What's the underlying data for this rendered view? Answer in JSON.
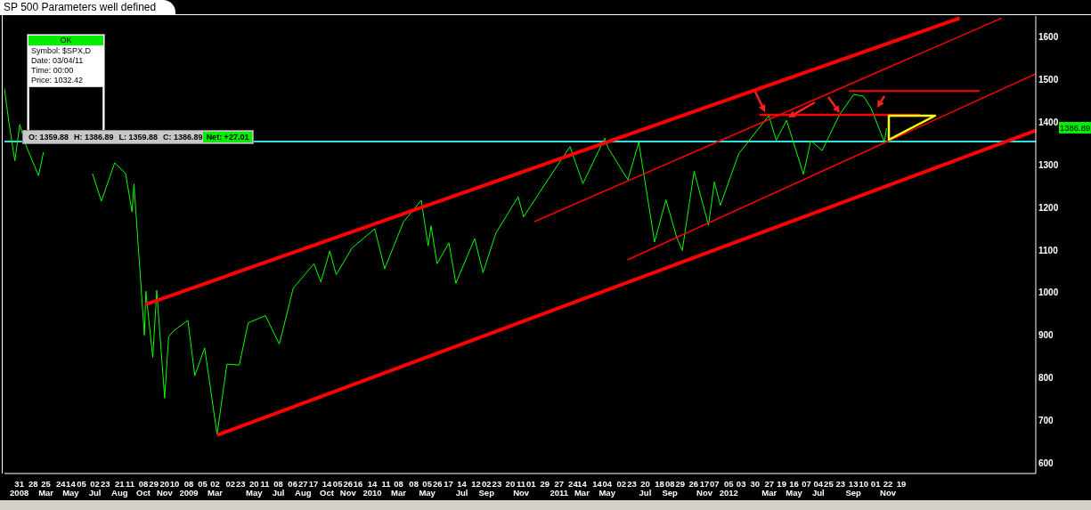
{
  "chart_data": {
    "type": "line",
    "title": "SP 500 Parameters well defined",
    "annotations": [
      "OK",
      "Symbol: $SPX,D",
      "Date: 03/04/11",
      "Time: 00:00",
      "Price: 1032.42",
      "O: 1359.88",
      "H: 1386.89",
      "L: 1359.88",
      "C: 1386.89",
      "Net: +27.01",
      "1386.89"
    ],
    "marker": "none",
    "xlim": [
      "2008-01-01",
      "2013-09-17"
    ],
    "xticks": [
      {
        "value": "2008-01-31",
        "label": "31\n2008"
      },
      {
        "value": "2008-02-28",
        "label": "28"
      },
      {
        "value": "2008-03-25",
        "label": "25\nMar"
      },
      {
        "value": "2008-04-24",
        "label": "24"
      },
      {
        "value": "2008-05-14",
        "label": "14\nMay"
      },
      {
        "value": "2008-06-05",
        "label": "05"
      },
      {
        "value": "2008-07-02",
        "label": "02\nJul"
      },
      {
        "value": "2008-07-23",
        "label": "23"
      },
      {
        "value": "2008-08-21",
        "label": "21\nAug"
      },
      {
        "value": "2008-09-11",
        "label": "11"
      },
      {
        "value": "2008-10-08",
        "label": "08\nOct"
      },
      {
        "value": "2008-10-29",
        "label": "29"
      },
      {
        "value": "2008-11-20",
        "label": "20\nNov"
      },
      {
        "value": "2008-12-10",
        "label": "10"
      },
      {
        "value": "2009-01-08",
        "label": "08\n2009"
      },
      {
        "value": "2009-02-05",
        "label": "05"
      },
      {
        "value": "2009-03-02",
        "label": "02\nMar"
      },
      {
        "value": "2009-04-02",
        "label": "02"
      },
      {
        "value": "2009-04-23",
        "label": "23"
      },
      {
        "value": "2009-05-20",
        "label": "20\nMay"
      },
      {
        "value": "2009-06-11",
        "label": "11"
      },
      {
        "value": "2009-07-08",
        "label": "08\nJul"
      },
      {
        "value": "2009-08-06",
        "label": "06"
      },
      {
        "value": "2009-08-27",
        "label": "27\nAug"
      },
      {
        "value": "2009-09-17",
        "label": "17"
      },
      {
        "value": "2009-10-14",
        "label": "14\nOct"
      },
      {
        "value": "2009-11-05",
        "label": "05"
      },
      {
        "value": "2009-11-26",
        "label": "26\nNov"
      },
      {
        "value": "2009-12-16",
        "label": "16"
      },
      {
        "value": "2010-01-14",
        "label": "14\n2010"
      },
      {
        "value": "2010-02-11",
        "label": "11"
      },
      {
        "value": "2010-03-08",
        "label": "08\nMar"
      },
      {
        "value": "2010-04-08",
        "label": "08"
      },
      {
        "value": "2010-05-05",
        "label": "05\nMay"
      },
      {
        "value": "2010-05-26",
        "label": "26"
      },
      {
        "value": "2010-06-17",
        "label": "17"
      },
      {
        "value": "2010-07-14",
        "label": "14\nJul"
      },
      {
        "value": "2010-08-12",
        "label": "12"
      },
      {
        "value": "2010-09-02",
        "label": "02\nSep"
      },
      {
        "value": "2010-09-23",
        "label": "23"
      },
      {
        "value": "2010-10-20",
        "label": "20"
      },
      {
        "value": "2010-11-11",
        "label": "11\nNov"
      },
      {
        "value": "2010-12-01",
        "label": "01"
      },
      {
        "value": "2010-12-29",
        "label": "29"
      },
      {
        "value": "2011-01-27",
        "label": "27\n2011"
      },
      {
        "value": "2011-02-24",
        "label": "24"
      },
      {
        "value": "2011-03-14",
        "label": "14\nMar"
      },
      {
        "value": "2011-04-14",
        "label": "14"
      },
      {
        "value": "2011-05-04",
        "label": "04\nMay"
      },
      {
        "value": "2011-06-02",
        "label": "02"
      },
      {
        "value": "2011-06-23",
        "label": "23"
      },
      {
        "value": "2011-07-20",
        "label": "20\nJul"
      },
      {
        "value": "2011-08-18",
        "label": "18"
      },
      {
        "value": "2011-09-08",
        "label": "08\nSep"
      },
      {
        "value": "2011-09-29",
        "label": "29"
      },
      {
        "value": "2011-10-26",
        "label": "26"
      },
      {
        "value": "2011-11-17",
        "label": "17\nNov"
      },
      {
        "value": "2011-12-07",
        "label": "07"
      },
      {
        "value": "2012-01-05",
        "label": "05\n2012"
      },
      {
        "value": "2012-01-30",
        "label": "03"
      },
      {
        "value": "2012-02-27",
        "label": "30"
      },
      {
        "value": "2012-03-27",
        "label": "27\nMar"
      },
      {
        "value": "2012-04-21",
        "label": "19"
      },
      {
        "value": "2012-05-16",
        "label": "16\nMay"
      },
      {
        "value": "2012-06-10",
        "label": "07"
      },
      {
        "value": "2012-07-04",
        "label": "04\nJul"
      },
      {
        "value": "2012-07-25",
        "label": "25"
      },
      {
        "value": "2012-08-18",
        "label": "23"
      },
      {
        "value": "2012-09-13",
        "label": "13\nSep"
      },
      {
        "value": "2012-10-04",
        "label": "10"
      },
      {
        "value": "2012-10-28",
        "label": "01"
      },
      {
        "value": "2012-11-22",
        "label": "22\nNov"
      },
      {
        "value": "2012-12-19",
        "label": "19"
      }
    ],
    "ylim": [
      575,
      1650
    ],
    "yticks": [
      600,
      700,
      800,
      900,
      1000,
      1100,
      1200,
      1300,
      1400,
      1500,
      1600
    ],
    "ref_lines": [
      {
        "axis": "y",
        "value": 1355,
        "label": null,
        "color": "#33e0e0"
      }
    ],
    "series": [
      {
        "color": "#00ff00",
        "x": [
          "2008-01-01",
          "2008-01-10",
          "2008-01-22",
          "2008-02-01",
          "2008-02-12",
          "2008-03-10",
          "2008-03-20",
          "2008-04-03",
          "2008-05-19",
          "2008-06-05",
          "2008-06-27",
          "2008-07-15",
          "2008-08-11",
          "2008-09-02",
          "2008-09-15",
          "2008-09-19",
          "2008-10-10",
          "2008-10-13",
          "2008-10-27",
          "2008-11-04",
          "2008-11-20",
          "2008-11-28",
          "2008-12-08",
          "2009-01-06",
          "2009-01-20",
          "2009-02-09",
          "2009-03-06",
          "2009-03-26",
          "2009-04-20",
          "2009-05-08",
          "2009-06-12",
          "2009-07-10",
          "2009-08-07",
          "2009-09-18",
          "2009-10-02",
          "2009-10-20",
          "2009-11-02",
          "2009-12-04",
          "2010-01-19",
          "2010-02-08",
          "2010-03-18",
          "2010-04-23",
          "2010-05-07",
          "2010-05-13",
          "2010-05-25",
          "2010-06-18",
          "2010-07-02",
          "2010-08-09",
          "2010-08-26",
          "2010-09-21",
          "2010-11-05",
          "2010-11-16",
          "2010-12-31",
          "2011-02-18",
          "2011-03-16",
          "2011-04-29",
          "2011-05-06",
          "2011-06-15",
          "2011-07-07",
          "2011-08-08",
          "2011-08-31",
          "2011-09-22",
          "2011-10-03",
          "2011-10-27",
          "2011-11-25",
          "2011-12-07",
          "2011-12-19",
          "2012-01-25",
          "2012-03-26",
          "2012-04-10",
          "2012-05-01",
          "2012-06-04",
          "2012-06-19",
          "2012-07-12",
          "2012-08-16",
          "2012-09-14",
          "2012-10-04",
          "2012-10-19",
          "2012-11-15",
          "2012-11-19"
        ],
        "values": [
          1480,
          1400,
          1310,
          1395,
          1350,
          1275,
          1330,
          null,
          null,
          null,
          1280,
          1215,
          1305,
          1280,
          1190,
          1255,
          900,
          1003,
          848,
          1005,
          752,
          896,
          910,
          935,
          805,
          870,
          667,
          832,
          830,
          929,
          946,
          879,
          1010,
          1068,
          1025,
          1098,
          1042,
          1105,
          1150,
          1056,
          1166,
          1217,
          1110,
          1157,
          1068,
          1117,
          1022,
          1127,
          1047,
          1140,
          1225,
          1178,
          1258,
          1343,
          1256,
          1363,
          1340,
          1265,
          1353,
          1119,
          1218,
          1129,
          1099,
          1285,
          1158,
          1260,
          1205,
          1326,
          1416,
          1358,
          1405,
          1278,
          1357,
          1334,
          1418,
          1466,
          1461,
          1433,
          1353,
          1387
        ]
      },
      {
        "color": "#ff0000",
        "x": [
          "2008-10-12",
          "2013-04-16"
        ],
        "values": [
          972,
          1645
        ]
      },
      {
        "color": "#ff0000",
        "x": [
          "2009-03-06",
          "2013-09-17"
        ],
        "values": [
          665,
          1381
        ]
      },
      {
        "color": "#ff0000",
        "x": [
          "2010-12-08",
          "2013-07-10"
        ],
        "values": [
          1167,
          1645
        ]
      },
      {
        "color": "#ff0000",
        "x": [
          "2011-06-14",
          "2013-09-17"
        ],
        "values": [
          1077,
          1514
        ]
      },
      {
        "color": "#ff0000",
        "x": [
          "2012-03-07",
          "2013-01-26"
        ],
        "values": [
          1418,
          1418
        ]
      },
      {
        "color": "#ff0000",
        "x": [
          "2012-09-04",
          "2013-05-27"
        ],
        "values": [
          1474,
          1474
        ]
      }
    ]
  }
}
